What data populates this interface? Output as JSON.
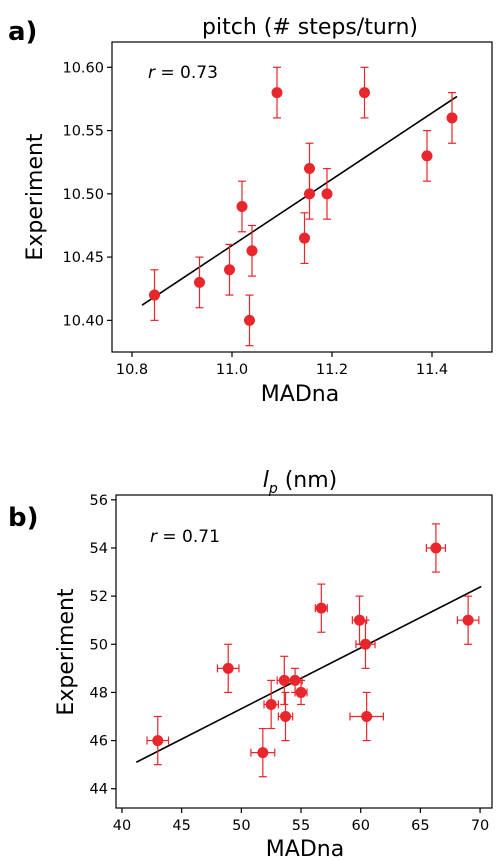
{
  "chart_data": [
    {
      "type": "scatter",
      "panel_label": "a)",
      "title": "pitch (# steps/turn)",
      "xlabel": "MADna",
      "ylabel": "Experiment",
      "xlim": [
        10.76,
        11.52
      ],
      "ylim": [
        10.375,
        10.62
      ],
      "xticks": [
        10.8,
        11.0,
        11.2,
        11.4
      ],
      "xtick_labels": [
        "10.8",
        "11.0",
        "11.2",
        "11.4"
      ],
      "yticks": [
        10.4,
        10.45,
        10.5,
        10.55,
        10.6
      ],
      "ytick_labels": [
        "10.40",
        "10.45",
        "10.50",
        "10.55",
        "10.60"
      ],
      "annotation": {
        "symbol": "r",
        "text": " = 0.73"
      },
      "marker_color": "#e8262b",
      "fit_line_color": "#000000",
      "x_error": false,
      "points": [
        {
          "x": 10.845,
          "y": 10.42,
          "yerr": 0.02
        },
        {
          "x": 10.935,
          "y": 10.43,
          "yerr": 0.02
        },
        {
          "x": 10.995,
          "y": 10.44,
          "yerr": 0.02
        },
        {
          "x": 11.02,
          "y": 10.49,
          "yerr": 0.02
        },
        {
          "x": 11.035,
          "y": 10.4,
          "yerr": 0.02
        },
        {
          "x": 11.04,
          "y": 10.455,
          "yerr": 0.02
        },
        {
          "x": 11.09,
          "y": 10.58,
          "yerr": 0.02
        },
        {
          "x": 11.145,
          "y": 10.465,
          "yerr": 0.02
        },
        {
          "x": 11.155,
          "y": 10.52,
          "yerr": 0.02
        },
        {
          "x": 11.155,
          "y": 10.5,
          "yerr": 0.02
        },
        {
          "x": 11.19,
          "y": 10.5,
          "yerr": 0.02
        },
        {
          "x": 11.265,
          "y": 10.58,
          "yerr": 0.02
        },
        {
          "x": 11.39,
          "y": 10.53,
          "yerr": 0.02
        },
        {
          "x": 11.44,
          "y": 10.56,
          "yerr": 0.02
        }
      ],
      "fit_line": [
        [
          10.82,
          10.412
        ],
        [
          11.45,
          10.577
        ]
      ]
    },
    {
      "type": "scatter",
      "panel_label": "b)",
      "title_symbol": "l",
      "title_subscript": "p",
      "title_rest": " (nm)",
      "xlabel": "MADna",
      "ylabel": "Experiment",
      "xlim": [
        39.5,
        71.0
      ],
      "ylim": [
        43.2,
        56.2
      ],
      "xticks": [
        40,
        45,
        50,
        55,
        60,
        65,
        70
      ],
      "xtick_labels": [
        "40",
        "45",
        "50",
        "55",
        "60",
        "65",
        "70"
      ],
      "yticks": [
        44,
        46,
        48,
        50,
        52,
        54,
        56
      ],
      "ytick_labels": [
        "44",
        "46",
        "48",
        "50",
        "52",
        "54",
        "56"
      ],
      "annotation": {
        "symbol": "r",
        "text": " = 0.71"
      },
      "marker_color": "#e8262b",
      "fit_line_color": "#000000",
      "x_error": true,
      "points": [
        {
          "x": 43.0,
          "y": 46.0,
          "xerr": 0.9,
          "yerr": 1.0
        },
        {
          "x": 48.9,
          "y": 49.0,
          "xerr": 0.9,
          "yerr": 1.0
        },
        {
          "x": 51.8,
          "y": 45.5,
          "xerr": 1.0,
          "yerr": 1.0
        },
        {
          "x": 52.5,
          "y": 47.5,
          "xerr": 0.6,
          "yerr": 1.0
        },
        {
          "x": 53.6,
          "y": 48.5,
          "xerr": 0.6,
          "yerr": 1.0
        },
        {
          "x": 53.7,
          "y": 47.0,
          "xerr": 0.6,
          "yerr": 1.0
        },
        {
          "x": 54.5,
          "y": 48.5,
          "xerr": 0.6,
          "yerr": 0.5
        },
        {
          "x": 55.0,
          "y": 48.0,
          "xerr": 0.5,
          "yerr": 0.5
        },
        {
          "x": 56.7,
          "y": 51.5,
          "xerr": 0.5,
          "yerr": 1.0
        },
        {
          "x": 59.9,
          "y": 51.0,
          "xerr": 0.6,
          "yerr": 1.0
        },
        {
          "x": 60.4,
          "y": 50.0,
          "xerr": 0.8,
          "yerr": 1.0
        },
        {
          "x": 60.5,
          "y": 47.0,
          "xerr": 1.4,
          "yerr": 1.0
        },
        {
          "x": 66.3,
          "y": 54.0,
          "xerr": 0.8,
          "yerr": 1.0
        },
        {
          "x": 69.0,
          "y": 51.0,
          "xerr": 0.9,
          "yerr": 1.0
        }
      ],
      "fit_line": [
        [
          41.2,
          45.1
        ],
        [
          70.1,
          52.4
        ]
      ]
    }
  ]
}
